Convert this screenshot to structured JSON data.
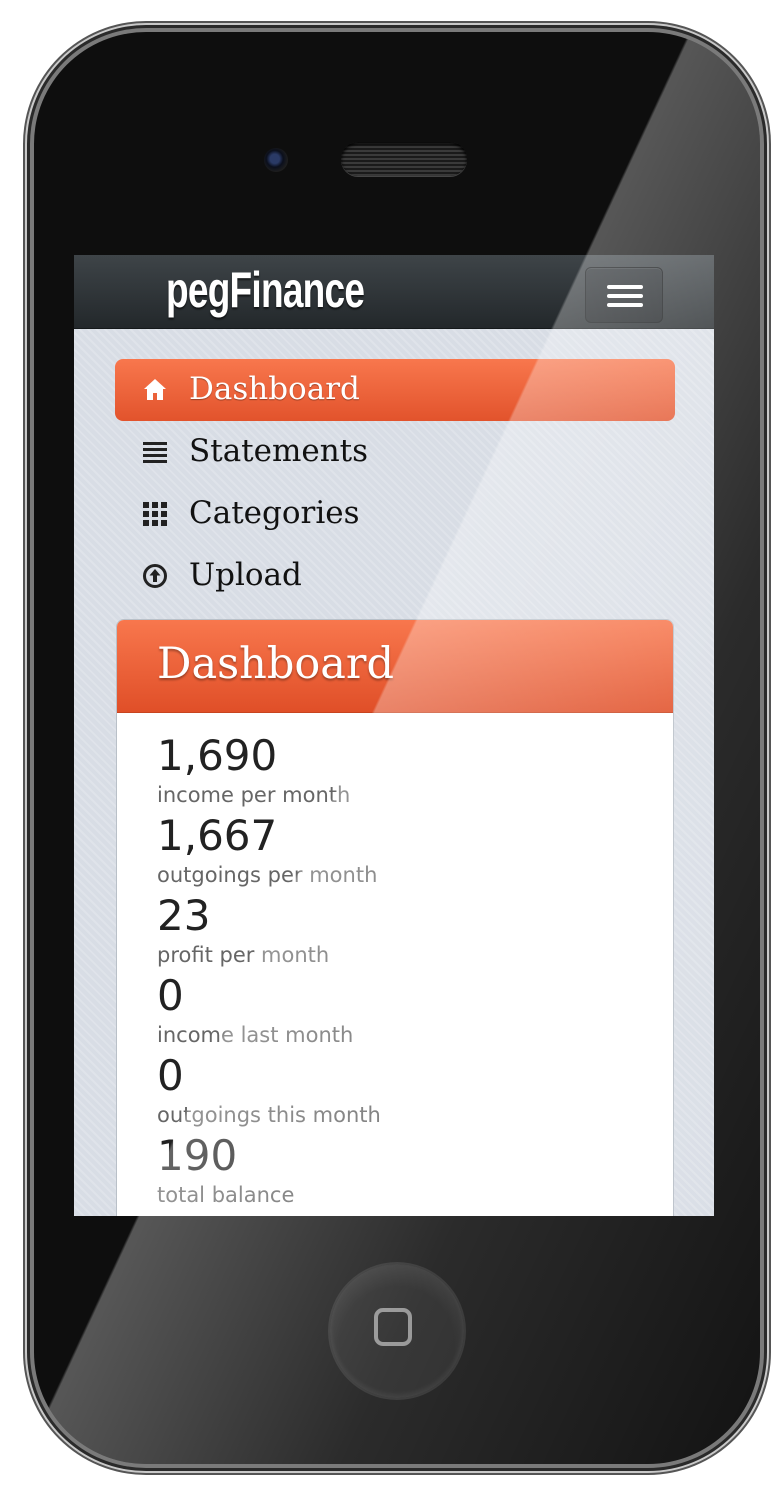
{
  "app": {
    "brand": "pegFinance"
  },
  "nav": {
    "items": [
      {
        "label": "Dashboard",
        "icon": "home-icon",
        "active": true
      },
      {
        "label": "Statements",
        "icon": "list-icon",
        "active": false
      },
      {
        "label": "Categories",
        "icon": "grid-icon",
        "active": false
      },
      {
        "label": "Upload",
        "icon": "upload-circle-icon",
        "active": false
      }
    ]
  },
  "dashboard": {
    "title": "Dashboard",
    "stats": [
      {
        "value": "1,690",
        "label": "income per month"
      },
      {
        "value": "1,667",
        "label": "outgoings per month"
      },
      {
        "value": "23",
        "label": "profit per month"
      },
      {
        "value": "0",
        "label": "income last month"
      },
      {
        "value": "0",
        "label": "outgoings this month"
      },
      {
        "value": "190",
        "label": "total balance"
      }
    ]
  },
  "colors": {
    "accent": "#f06a3e",
    "navbar": "#2f3438",
    "background": "#d8dde5"
  }
}
